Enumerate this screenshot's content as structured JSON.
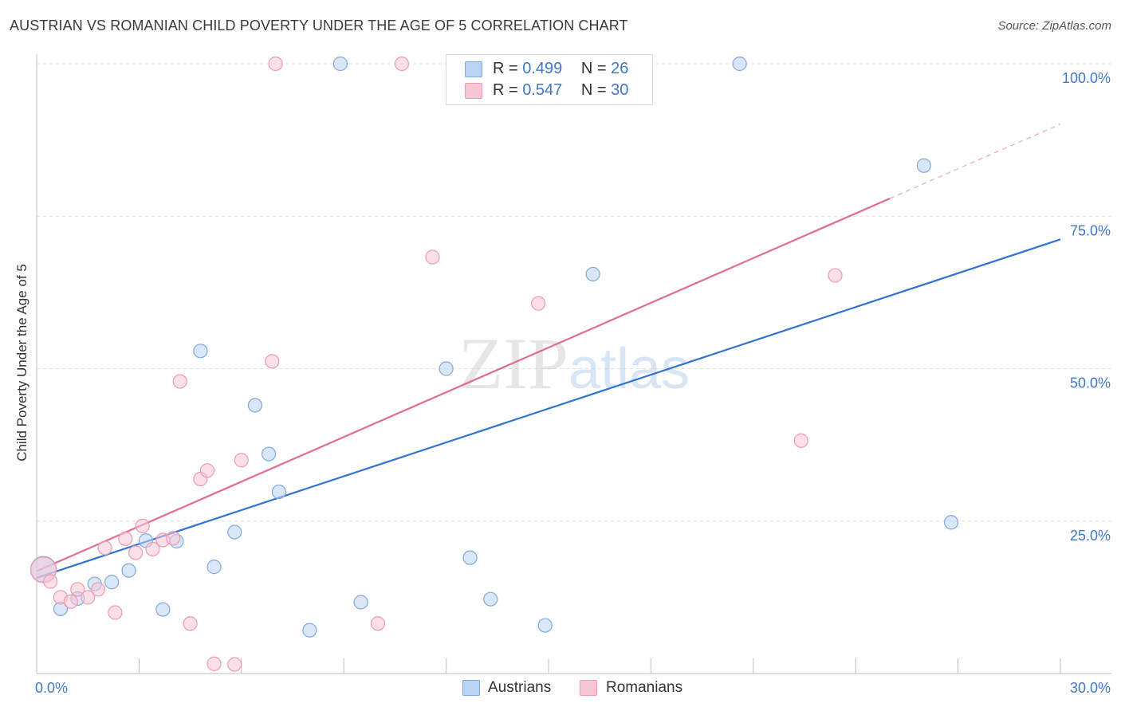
{
  "header": {
    "title": "AUSTRIAN VS ROMANIAN CHILD POVERTY UNDER THE AGE OF 5 CORRELATION CHART",
    "source": "Source: ZipAtlas.com"
  },
  "legend": {
    "rows": [
      {
        "r_label": "R = ",
        "r_value": "0.499",
        "n_label": "N = ",
        "n_value": "26"
      },
      {
        "r_label": "R = ",
        "r_value": "0.547",
        "n_label": "N = ",
        "n_value": "30"
      }
    ]
  },
  "colors": {
    "austrians_fill": "#b9d3f3",
    "austrians_stroke": "#7fa9dc",
    "austrians_line": "#2f74d0",
    "romanians_fill": "#f8c7d4",
    "romanians_stroke": "#ee9ab1",
    "romanians_line": "#e06b93",
    "tick_text": "#3f78c8",
    "grid": "#e0e0e0"
  },
  "chart_data": {
    "type": "scatter",
    "title": "AUSTRIAN VS ROMANIAN CHILD POVERTY UNDER THE AGE OF 5 CORRELATION CHART",
    "xlabel": "",
    "ylabel": "Child Poverty Under the Age of 5",
    "xlim": [
      0,
      30
    ],
    "ylim": [
      0,
      100
    ],
    "x_tick_labels": [
      "0.0%",
      "30.0%"
    ],
    "y_ticks": [
      25,
      50,
      75,
      100
    ],
    "y_tick_labels": [
      "25.0%",
      "50.0%",
      "75.0%",
      "100.0%"
    ],
    "grid": true,
    "legend_position": "top-center",
    "watermark": "ZIPatlas",
    "series": [
      {
        "name": "Austrians",
        "r": 0.499,
        "n": 26,
        "trend": {
          "x": [
            0,
            30
          ],
          "y": [
            15.7,
            71.2
          ]
        },
        "points": [
          {
            "x": 0.2,
            "y": 17.1,
            "big": true
          },
          {
            "x": 0.7,
            "y": 10.6
          },
          {
            "x": 1.2,
            "y": 12.3
          },
          {
            "x": 1.7,
            "y": 14.7
          },
          {
            "x": 2.2,
            "y": 15.0
          },
          {
            "x": 2.7,
            "y": 16.9
          },
          {
            "x": 3.2,
            "y": 21.8
          },
          {
            "x": 3.7,
            "y": 10.5
          },
          {
            "x": 4.1,
            "y": 21.7
          },
          {
            "x": 4.8,
            "y": 52.9
          },
          {
            "x": 5.2,
            "y": 17.5
          },
          {
            "x": 5.8,
            "y": 23.2
          },
          {
            "x": 6.4,
            "y": 44.0
          },
          {
            "x": 6.8,
            "y": 36.0
          },
          {
            "x": 7.1,
            "y": 29.8
          },
          {
            "x": 8.0,
            "y": 7.1
          },
          {
            "x": 8.9,
            "y": 100
          },
          {
            "x": 9.5,
            "y": 11.7
          },
          {
            "x": 12.0,
            "y": 50.0
          },
          {
            "x": 12.7,
            "y": 19.0
          },
          {
            "x": 13.3,
            "y": 12.2
          },
          {
            "x": 14.9,
            "y": 7.9
          },
          {
            "x": 16.3,
            "y": 65.5
          },
          {
            "x": 20.6,
            "y": 100
          },
          {
            "x": 26.0,
            "y": 83.3
          },
          {
            "x": 26.8,
            "y": 24.8
          }
        ]
      },
      {
        "name": "Romanians",
        "r": 0.547,
        "n": 30,
        "trend": {
          "x": [
            0,
            25
          ],
          "y": [
            16.8,
            77.9
          ]
        },
        "trend_dashed": {
          "x": [
            25,
            30
          ],
          "y": [
            77.9,
            90.1
          ]
        },
        "points": [
          {
            "x": 0.2,
            "y": 17.0,
            "big": true
          },
          {
            "x": 0.4,
            "y": 15.1
          },
          {
            "x": 0.7,
            "y": 12.5
          },
          {
            "x": 1.0,
            "y": 11.8
          },
          {
            "x": 1.2,
            "y": 13.8
          },
          {
            "x": 1.5,
            "y": 12.5
          },
          {
            "x": 1.8,
            "y": 13.8
          },
          {
            "x": 2.0,
            "y": 20.6
          },
          {
            "x": 2.3,
            "y": 10.0
          },
          {
            "x": 2.6,
            "y": 22.1
          },
          {
            "x": 2.9,
            "y": 19.8
          },
          {
            "x": 3.1,
            "y": 24.2
          },
          {
            "x": 3.4,
            "y": 20.4
          },
          {
            "x": 3.7,
            "y": 21.9
          },
          {
            "x": 4.0,
            "y": 22.2
          },
          {
            "x": 4.2,
            "y": 47.9
          },
          {
            "x": 4.5,
            "y": 8.2
          },
          {
            "x": 4.8,
            "y": 31.9
          },
          {
            "x": 5.0,
            "y": 33.3
          },
          {
            "x": 5.2,
            "y": 1.6
          },
          {
            "x": 5.8,
            "y": 1.5
          },
          {
            "x": 6.0,
            "y": 35.0
          },
          {
            "x": 6.9,
            "y": 51.2
          },
          {
            "x": 7.0,
            "y": 100
          },
          {
            "x": 10.0,
            "y": 8.2
          },
          {
            "x": 10.7,
            "y": 100
          },
          {
            "x": 11.6,
            "y": 68.3
          },
          {
            "x": 14.7,
            "y": 60.7
          },
          {
            "x": 22.4,
            "y": 38.2
          },
          {
            "x": 23.4,
            "y": 65.3
          }
        ]
      }
    ]
  }
}
